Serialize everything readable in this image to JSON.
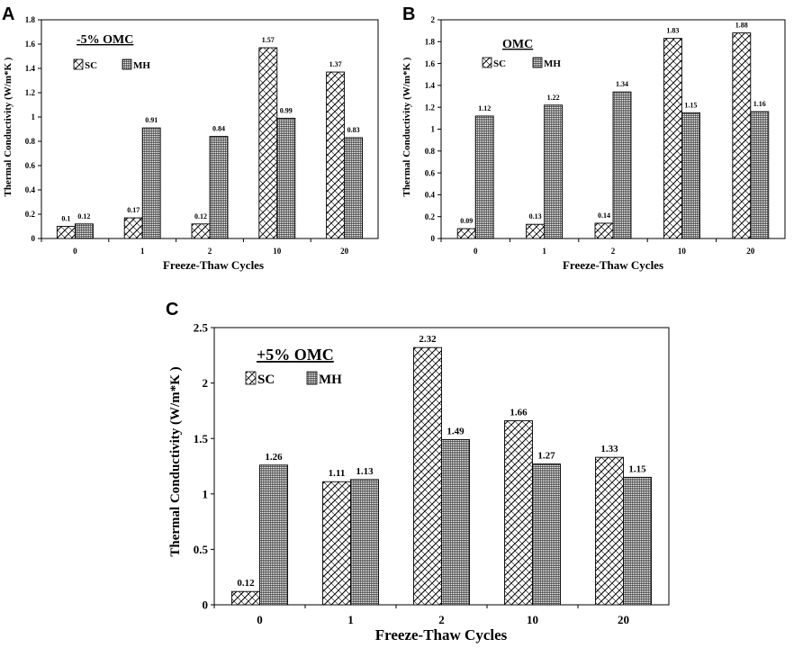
{
  "colors": {
    "axis": "#000000",
    "bar_stroke": "#000000",
    "sc_pattern": "#000000",
    "mh_pattern": "#000000"
  },
  "chart_data": [
    {
      "panel": "A",
      "type": "bar",
      "title": "-5% OMC",
      "xlabel": "Freeze-Thaw  Cycles",
      "ylabel": "Thermal Conductivity (W/m*K )",
      "categories": [
        "0",
        "1",
        "2",
        "10",
        "20"
      ],
      "ylim": [
        0,
        1.8
      ],
      "yticks": [
        "0",
        "0.2",
        "0.4",
        "0.6",
        "0.8",
        "1",
        "1.2",
        "1.4",
        "1.6",
        "1.8"
      ],
      "series": [
        {
          "name": "SC",
          "values": [
            0.1,
            0.17,
            0.12,
            1.57,
            1.37
          ],
          "labels": [
            "0.1",
            "0.17",
            "0.12",
            "1.57",
            "1.37"
          ]
        },
        {
          "name": "MH",
          "values": [
            0.12,
            0.91,
            0.84,
            0.99,
            0.83
          ],
          "labels": [
            "0.12",
            "0.91",
            "0.84",
            "0.99",
            "0.83"
          ]
        }
      ]
    },
    {
      "panel": "B",
      "type": "bar",
      "title": "OMC",
      "xlabel": "Freeze-Thaw  Cycles",
      "ylabel": "Thermal Conductivity (W/m*K )",
      "categories": [
        "0",
        "1",
        "2",
        "10",
        "20"
      ],
      "ylim": [
        0,
        2
      ],
      "yticks": [
        "0",
        "0.2",
        "0.4",
        "0.6",
        "0.8",
        "1",
        "1.2",
        "1.4",
        "1.6",
        "1.8",
        "2"
      ],
      "series": [
        {
          "name": "SC",
          "values": [
            0.09,
            0.13,
            0.14,
            1.83,
            1.88
          ],
          "labels": [
            "0.09",
            "0.13",
            "0.14",
            "1.83",
            "1.88"
          ]
        },
        {
          "name": "MH",
          "values": [
            1.12,
            1.22,
            1.34,
            1.15,
            1.16
          ],
          "labels": [
            "1.12",
            "1.22",
            "1.34",
            "1.15",
            "1.16"
          ]
        }
      ]
    },
    {
      "panel": "C",
      "type": "bar",
      "title": "+5% OMC",
      "xlabel": "Freeze-Thaw  Cycles",
      "ylabel": "Thermal Conductivity (W/m*K )",
      "categories": [
        "0",
        "1",
        "2",
        "10",
        "20"
      ],
      "ylim": [
        0,
        2.5
      ],
      "yticks": [
        "0",
        "0.5",
        "1",
        "1.5",
        "2",
        "2.5"
      ],
      "series": [
        {
          "name": "SC",
          "values": [
            0.12,
            1.11,
            2.32,
            1.66,
            1.33
          ],
          "labels": [
            "0.12",
            "1.11",
            "2.32",
            "1.66",
            "1.33"
          ]
        },
        {
          "name": "MH",
          "values": [
            1.26,
            1.13,
            1.49,
            1.27,
            1.15
          ],
          "labels": [
            "1.26",
            "1.13",
            "1.49",
            "1.27",
            "1.15"
          ]
        }
      ]
    }
  ]
}
